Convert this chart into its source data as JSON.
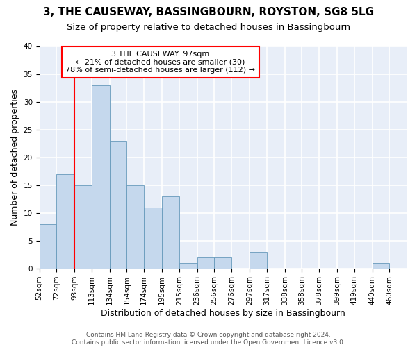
{
  "title": "3, THE CAUSEWAY, BASSINGBOURN, ROYSTON, SG8 5LG",
  "subtitle": "Size of property relative to detached houses in Bassingbourn",
  "xlabel": "Distribution of detached houses by size in Bassingbourn",
  "ylabel": "Number of detached properties",
  "bar_color": "#c5d8ed",
  "bar_edge_color": "#6699bb",
  "bg_color": "#e8eef8",
  "grid_color": "white",
  "bin_edges": [
    52,
    72,
    93,
    113,
    134,
    154,
    174,
    195,
    215,
    236,
    256,
    276,
    297,
    317,
    338,
    358,
    378,
    399,
    419,
    440,
    460
  ],
  "tick_labels": [
    "52sqm",
    "72sqm",
    "93sqm",
    "113sqm",
    "134sqm",
    "154sqm",
    "174sqm",
    "195sqm",
    "215sqm",
    "236sqm",
    "256sqm",
    "276sqm",
    "297sqm",
    "317sqm",
    "338sqm",
    "358sqm",
    "378sqm",
    "399sqm",
    "419sqm",
    "440sqm",
    "460sqm"
  ],
  "values": [
    8,
    17,
    15,
    33,
    23,
    15,
    11,
    13,
    1,
    2,
    2,
    0,
    3,
    0,
    0,
    0,
    0,
    0,
    0,
    1
  ],
  "vline_x": 93,
  "annotation_text": "3 THE CAUSEWAY: 97sqm\n← 21% of detached houses are smaller (30)\n78% of semi-detached houses are larger (112) →",
  "annotation_box_color": "white",
  "annotation_box_edge_color": "red",
  "vline_color": "red",
  "ylim": [
    0,
    40
  ],
  "yticks": [
    0,
    5,
    10,
    15,
    20,
    25,
    30,
    35,
    40
  ],
  "footnote": "Contains HM Land Registry data © Crown copyright and database right 2024.\nContains public sector information licensed under the Open Government Licence v3.0.",
  "title_fontsize": 11,
  "subtitle_fontsize": 9.5,
  "xlabel_fontsize": 9,
  "ylabel_fontsize": 9,
  "tick_fontsize": 7.5,
  "annotation_fontsize": 8,
  "footnote_fontsize": 6.5
}
